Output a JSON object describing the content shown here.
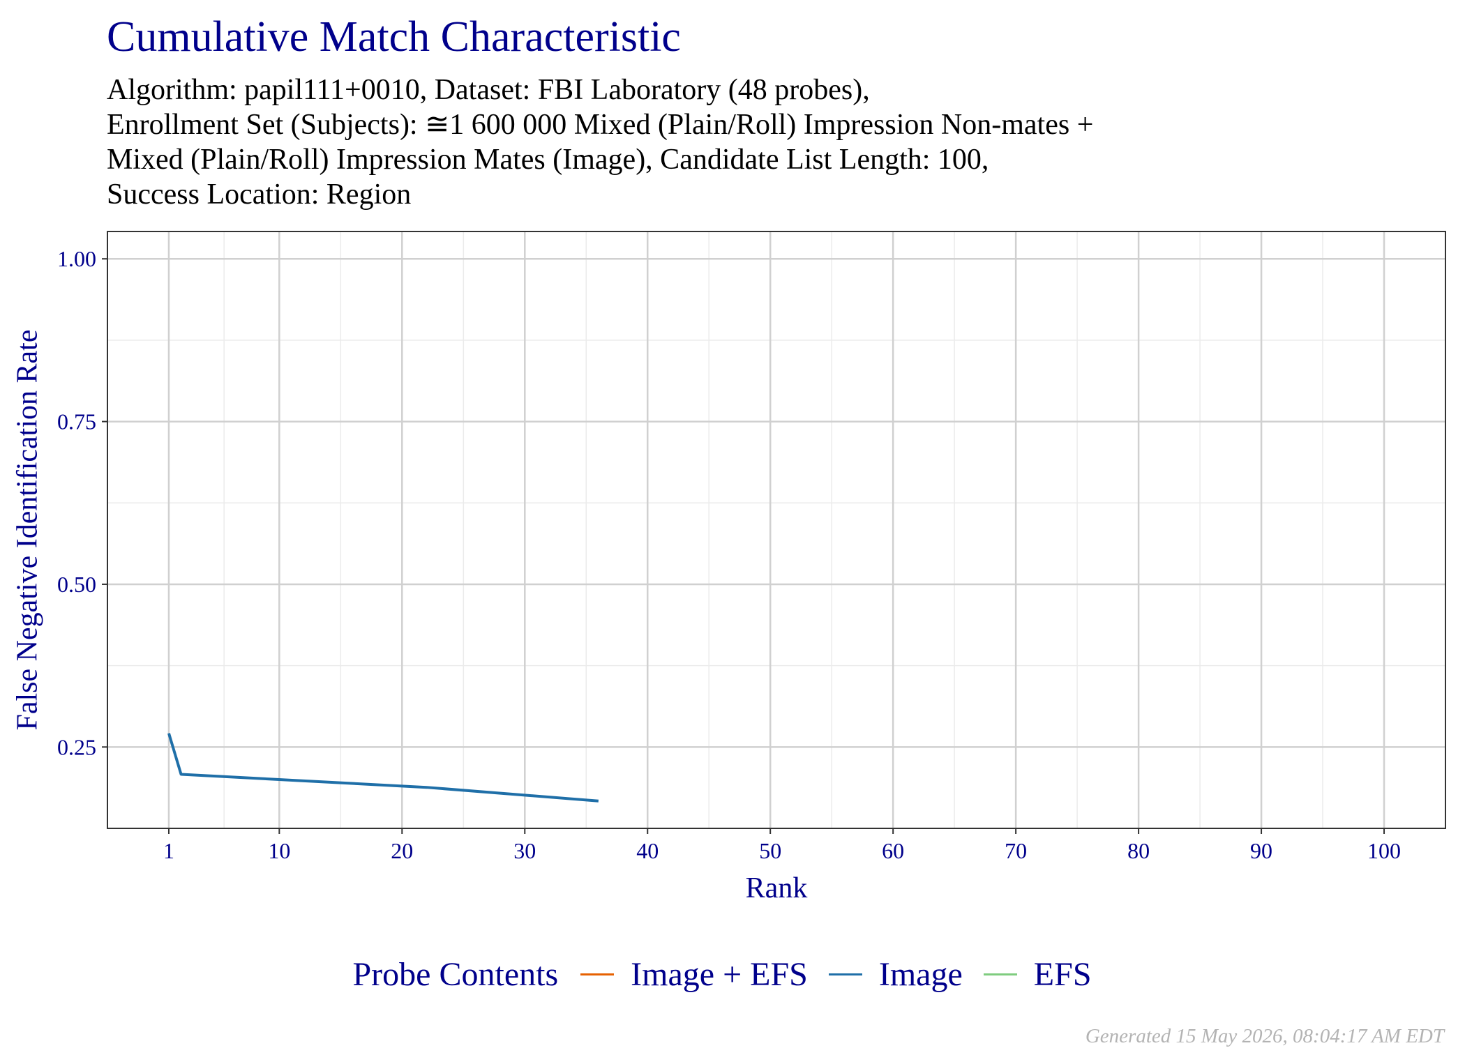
{
  "chart_data": {
    "type": "line",
    "title": "Cumulative Match Characteristic",
    "subtitle_lines": [
      "Algorithm: papil111+0010, Dataset: FBI Laboratory (48 probes),",
      "Enrollment Set (Subjects): ≅1 600 000 Mixed (Plain/Roll) Impression Non-mates +",
      "Mixed (Plain/Roll) Impression Mates (Image), Candidate List Length: 100,",
      "Success Location: Region"
    ],
    "xlabel": "Rank",
    "ylabel": "False Negative Identification Rate",
    "xlim": [
      -4,
      105
    ],
    "ylim": [
      0.125,
      1.042
    ],
    "xticks": [
      1,
      10,
      20,
      30,
      40,
      50,
      60,
      70,
      80,
      90,
      100
    ],
    "xtick_labels": [
      "1",
      "10",
      "20",
      "30",
      "40",
      "50",
      "60",
      "70",
      "80",
      "90",
      "100"
    ],
    "yticks": [
      0.25,
      0.5,
      0.75,
      1.0
    ],
    "ytick_labels": [
      "0.25",
      "0.50",
      "0.75",
      "1.00"
    ],
    "grid": true,
    "legend_position": "bottom",
    "legend_title": "Probe Contents",
    "series": [
      {
        "name": "Image + EFS",
        "color": "#e66101",
        "x": [],
        "y": []
      },
      {
        "name": "Image",
        "color": "#1f6fa8",
        "x": [
          1,
          2,
          22,
          36
        ],
        "y": [
          0.271,
          0.208,
          0.188,
          0.167
        ]
      },
      {
        "name": "EFS",
        "color": "#7fcc7f",
        "x": [],
        "y": []
      }
    ]
  },
  "footer": "Generated 15 May 2026, 08:04:17 AM EDT"
}
